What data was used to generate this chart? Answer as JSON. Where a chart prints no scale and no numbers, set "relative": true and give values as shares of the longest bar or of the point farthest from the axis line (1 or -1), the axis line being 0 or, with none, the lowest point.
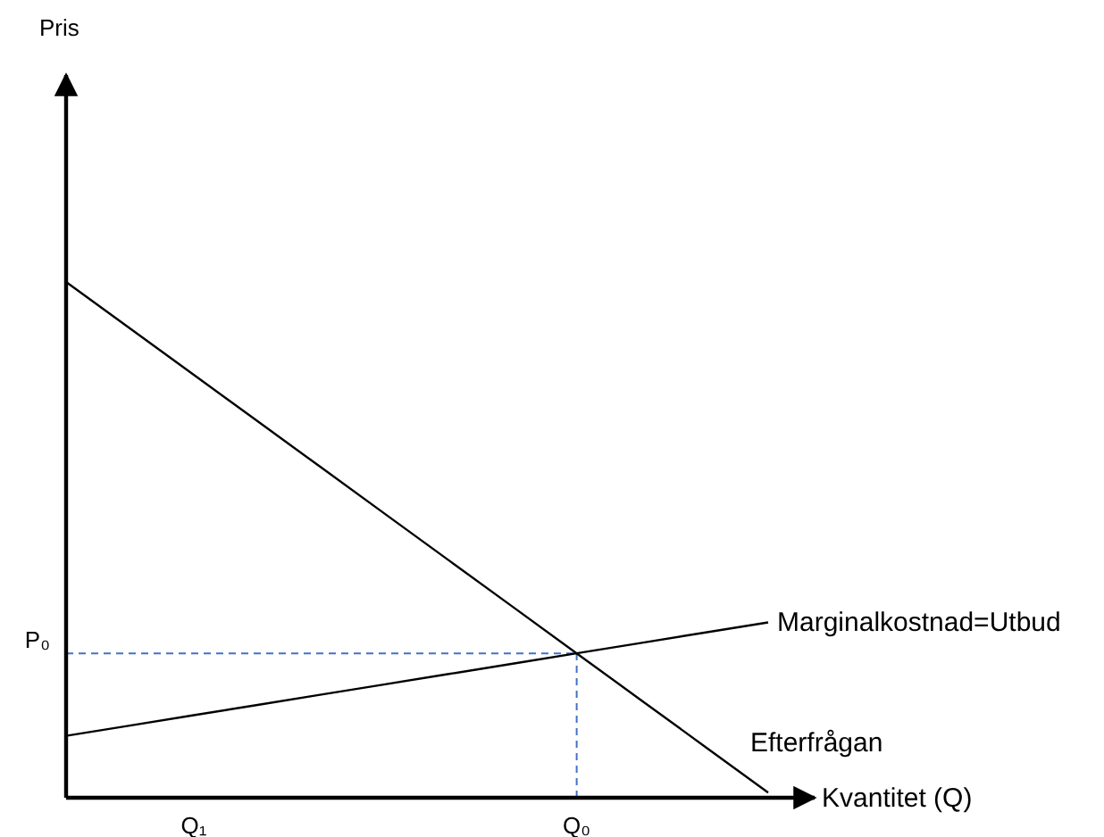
{
  "chart_data": {
    "type": "line",
    "relative": true,
    "annotations": [
      "Pris"
    ],
    "xlabel": "Kvantitet (Q)",
    "categories": [
      null,
      null,
      "Q₁",
      null,
      null,
      null,
      null,
      null,
      "Q₀",
      null,
      null,
      null
    ],
    "tick_labels": "x",
    "legend": false,
    "marker": "none",
    "line_style": "solid",
    "series": [
      {
        "name": "Efterfrågan",
        "color": "#000000",
        "values": [
          1,
          0.91,
          0.82,
          0.73,
          0.64,
          0.55,
          0.46,
          0.37,
          0.28,
          0.19,
          0.1,
          0.01
        ]
      },
      {
        "name": "Marginalkostnad=Utbud",
        "color": "#000000",
        "values": [
          0.12,
          0.14,
          0.16,
          0.18,
          0.2,
          0.22,
          0.24,
          0.26,
          0.28,
          0.3,
          0.32,
          0.34
        ]
      }
    ],
    "ref_lines": [
      {
        "axis": "y",
        "value": 0.28,
        "label": "P₀",
        "color": "#4472c4",
        "line_style": "dashed"
      },
      {
        "axis": "x",
        "value": "Q₀",
        "color": "#4472c4",
        "line_style": "dashed"
      }
    ]
  }
}
